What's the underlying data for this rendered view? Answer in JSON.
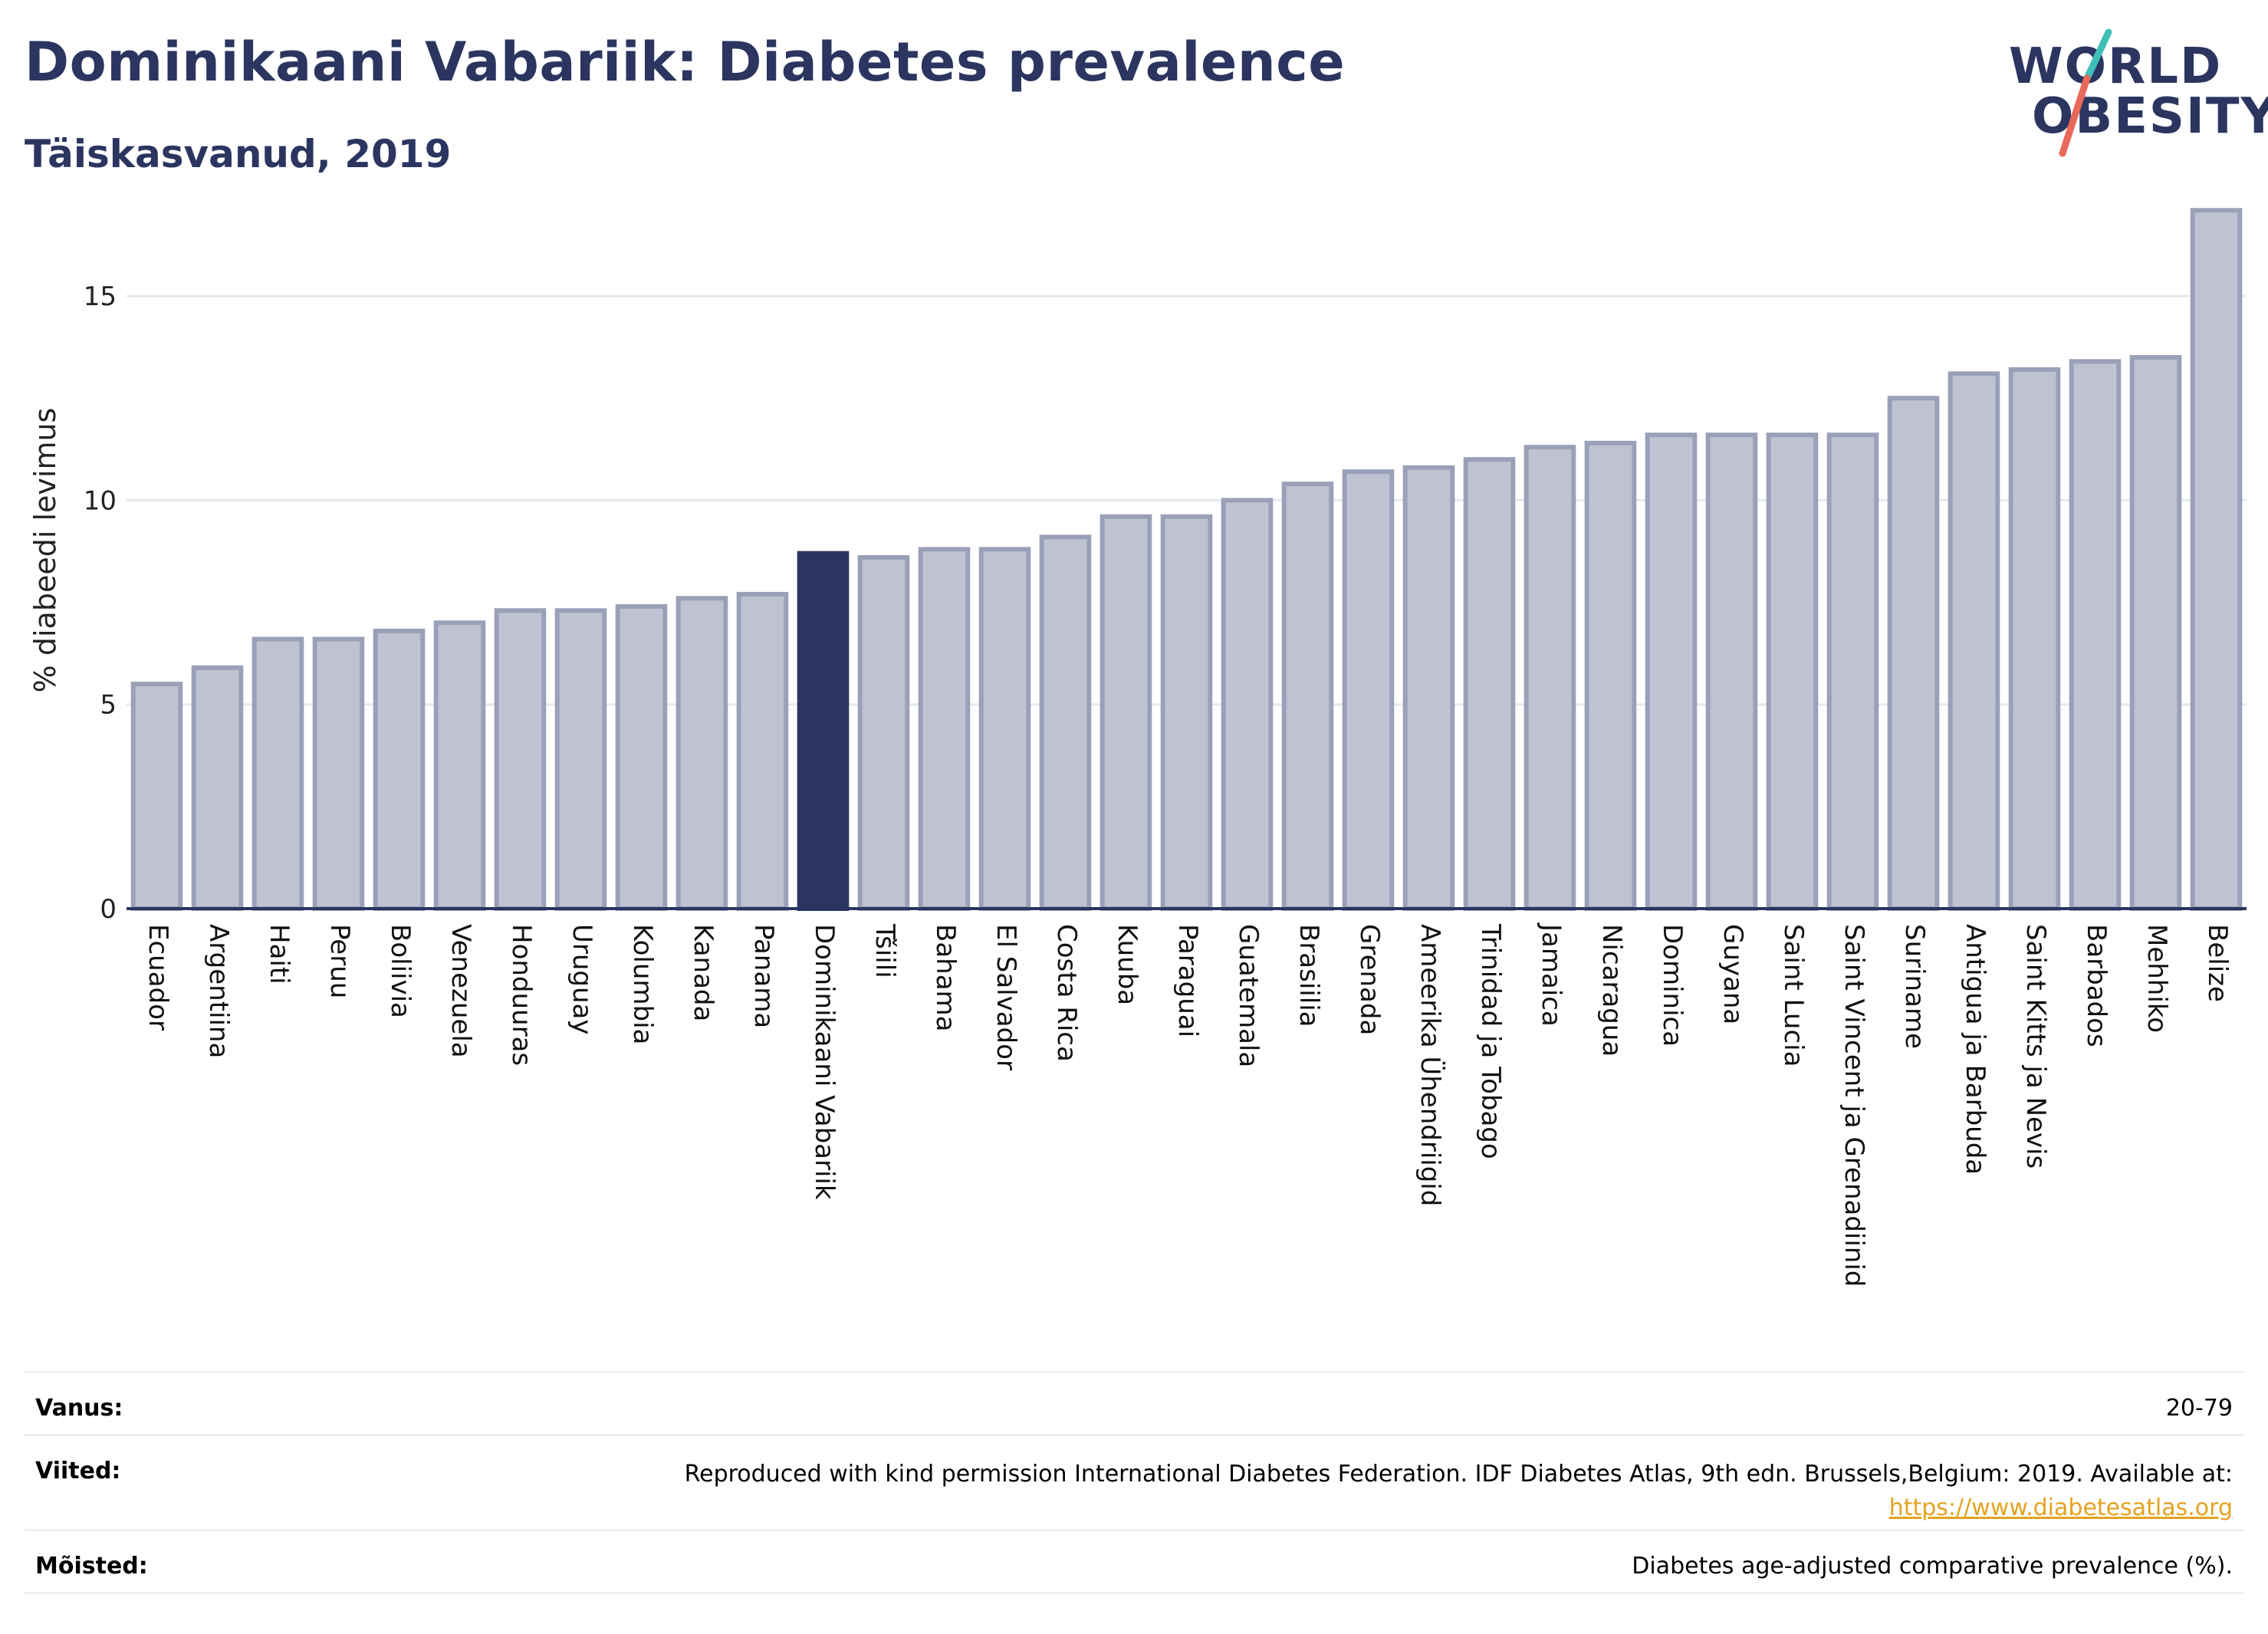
{
  "header": {
    "title": "Dominikaani Vabariik: Diabetes prevalence",
    "subtitle": "Täiskasvanud, 2019"
  },
  "logo": {
    "line1": "WORLD",
    "line2": "OBESITY",
    "accent_teal": "#3fbfb8",
    "accent_coral": "#e8685a"
  },
  "colors": {
    "bar_default": "#bfc3d1",
    "bar_default_stroke": "#9aa0b8",
    "bar_highlight": "#2b3560",
    "axis": "#2b3560",
    "grid": "#e6e8ee"
  },
  "chart_data": {
    "type": "bar",
    "title": "Dominikaani Vabariik: Diabetes prevalence",
    "subtitle": "Täiskasvanud, 2019",
    "xlabel": "",
    "ylabel": "% diabeedi levimus",
    "ylim": [
      0,
      17.5
    ],
    "yticks": [
      0,
      5,
      10,
      15
    ],
    "grid": true,
    "highlight": "Dominikaani Vabariik",
    "categories": [
      "Ecuador",
      "Argentiina",
      "Haiti",
      "Peruu",
      "Boliivia",
      "Venezuela",
      "Honduuras",
      "Uruguay",
      "Kolumbia",
      "Kanada",
      "Panama",
      "Dominikaani Vabariik",
      "Tšiili",
      "Bahama",
      "El Salvador",
      "Costa Rica",
      "Kuuba",
      "Paraguai",
      "Guatemala",
      "Brasiilia",
      "Grenada",
      "Ameerika Ühendriigid",
      "Trinidad ja Tobago",
      "Jamaica",
      "Nicaragua",
      "Dominica",
      "Guyana",
      "Saint Lucia",
      "Saint Vincent ja Grenadiinid",
      "Suriname",
      "Antigua ja Barbuda",
      "Saint Kitts ja Nevis",
      "Barbados",
      "Mehhiko",
      "Belize"
    ],
    "values": [
      5.5,
      5.9,
      6.6,
      6.6,
      6.8,
      7.0,
      7.3,
      7.3,
      7.4,
      7.6,
      7.7,
      8.7,
      8.6,
      8.8,
      8.8,
      9.1,
      9.6,
      9.6,
      10.0,
      10.4,
      10.7,
      10.8,
      11.0,
      11.3,
      11.4,
      11.6,
      11.6,
      11.6,
      11.6,
      12.5,
      13.1,
      13.2,
      13.4,
      13.5,
      17.1
    ]
  },
  "footer": {
    "age_label": "Vanus:",
    "age_value": "20-79",
    "refs_label": "Viited:",
    "refs_text": "Reproduced with kind permission International Diabetes Federation. IDF Diabetes Atlas, 9th edn. Brussels,Belgium: 2019. Available at:",
    "refs_link": "https://www.diabetesatlas.org",
    "defs_label": "Mõisted:",
    "defs_value": "Diabetes age-adjusted comparative prevalence (%)."
  }
}
